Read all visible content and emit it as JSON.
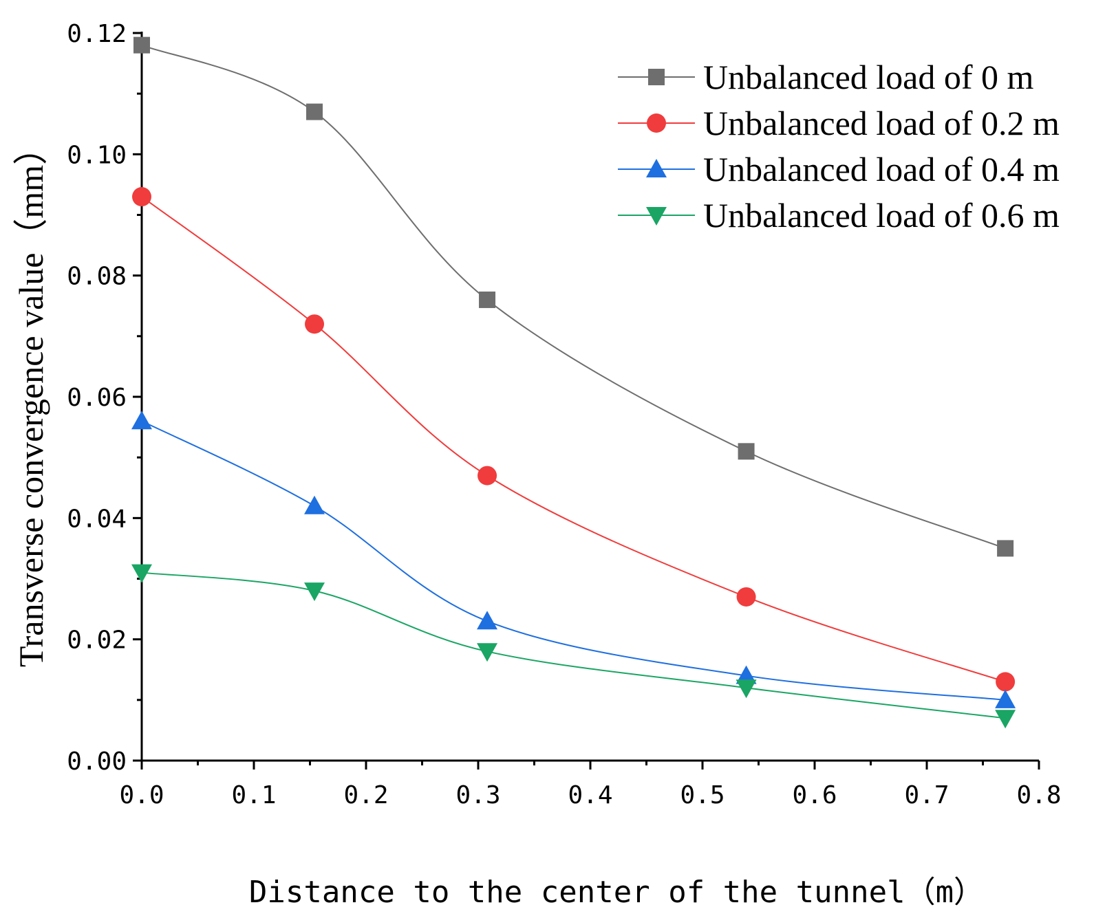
{
  "chart_data": {
    "type": "line",
    "title": "",
    "xlabel": "Distance to the center of the tunnel（m）",
    "ylabel": "Transverse convergence value（mm）",
    "xlim": [
      0,
      0.8
    ],
    "ylim": [
      0,
      0.12
    ],
    "x_ticks": [
      "0.0",
      "0.1",
      "0.2",
      "0.3",
      "0.4",
      "0.5",
      "0.6",
      "0.7",
      "0.8"
    ],
    "y_ticks": [
      "0.00",
      "0.02",
      "0.04",
      "0.06",
      "0.08",
      "0.10",
      "0.12"
    ],
    "grid": false,
    "legend_position": "top-right",
    "x": [
      0,
      0.154,
      0.308,
      0.539,
      0.77
    ],
    "series": [
      {
        "name": "Unbalanced load of 0 m",
        "color": "#6e6e6e",
        "marker": "square",
        "values": [
          0.118,
          0.107,
          0.076,
          0.051,
          0.035
        ]
      },
      {
        "name": "Unbalanced load of 0.2 m",
        "color": "#f03c3c",
        "marker": "circle",
        "values": [
          0.093,
          0.072,
          0.047,
          0.027,
          0.013
        ]
      },
      {
        "name": "Unbalanced load of 0.4 m",
        "color": "#1e6fe0",
        "marker": "triangle-up",
        "values": [
          0.056,
          0.042,
          0.023,
          0.014,
          0.01
        ]
      },
      {
        "name": "Unbalanced load of 0.6 m",
        "color": "#1aa564",
        "marker": "triangle-down",
        "values": [
          0.031,
          0.028,
          0.018,
          0.012,
          0.007
        ]
      }
    ]
  }
}
